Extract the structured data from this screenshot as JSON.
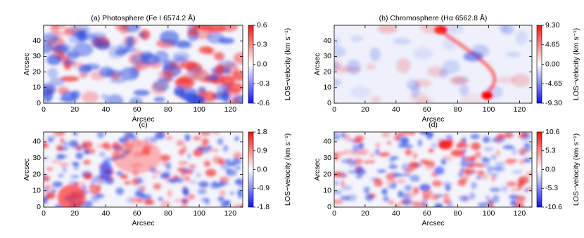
{
  "chart_data": [
    {
      "type": "heatmap",
      "title": "(a) Photosphere (Fe I 6574.2 Å)",
      "xlabel": "Arcsec",
      "ylabel": "Arcsec",
      "colorbar_label": "LOS−velocity (km s⁻¹)",
      "xlim": [
        0,
        128
      ],
      "ylim": [
        0,
        50
      ],
      "xticks": [
        0,
        20,
        40,
        60,
        80,
        100,
        120
      ],
      "yticks": [
        0,
        10,
        20,
        30,
        40
      ],
      "clim": [
        -0.6,
        0.6
      ],
      "cticks": [
        0.6,
        0.3,
        {
          "value": 0,
          "label": "0.0"
        },
        -0.3,
        -0.6
      ]
    },
    {
      "type": "heatmap",
      "title": "(b) Chromosphere (Hα 6562.8 Å)",
      "xlabel": "Arcsec",
      "ylabel": "Arcsec",
      "colorbar_label": "LOS−velocity (km s⁻¹)",
      "xlim": [
        0,
        128
      ],
      "ylim": [
        0,
        50
      ],
      "xticks": [
        0,
        20,
        40,
        60,
        80,
        100,
        120
      ],
      "yticks": [
        0,
        10,
        20,
        30,
        40
      ],
      "clim": [
        -9.3,
        9.3
      ],
      "cticks": [
        {
          "value": 9.3,
          "label": "9.30"
        },
        4.65,
        {
          "value": 0,
          "label": "0.00"
        },
        -4.65,
        {
          "value": -9.3,
          "label": "-9.30"
        }
      ]
    },
    {
      "type": "heatmap",
      "title": "(c)",
      "xlabel": "Arcsec",
      "ylabel": "Arcsec",
      "colorbar_label": "LOS−velocity (km s⁻¹)",
      "xlim": [
        0,
        128
      ],
      "ylim": [
        0,
        46
      ],
      "xticks": [
        0,
        20,
        40,
        60,
        80,
        100,
        120
      ],
      "yticks": [
        0,
        10,
        20,
        30,
        40
      ],
      "clim": [
        -1.8,
        1.8
      ],
      "cticks": [
        1.8,
        0.9,
        {
          "value": 0,
          "label": "0.0"
        },
        -0.9,
        -1.8
      ]
    },
    {
      "type": "heatmap",
      "title": "(d)",
      "xlabel": "Arcsec",
      "ylabel": "Arcsec",
      "colorbar_label": "LOS−velocity (km s⁻¹)",
      "xlim": [
        0,
        128
      ],
      "ylim": [
        0,
        46
      ],
      "xticks": [
        0,
        20,
        40,
        60,
        80,
        100,
        120
      ],
      "yticks": [
        0,
        10,
        20,
        30,
        40
      ],
      "clim": [
        -10.6,
        10.6
      ],
      "cticks": [
        10.6,
        5.3,
        {
          "value": 0,
          "label": "0.0"
        },
        -5.3,
        -10.6
      ]
    }
  ]
}
